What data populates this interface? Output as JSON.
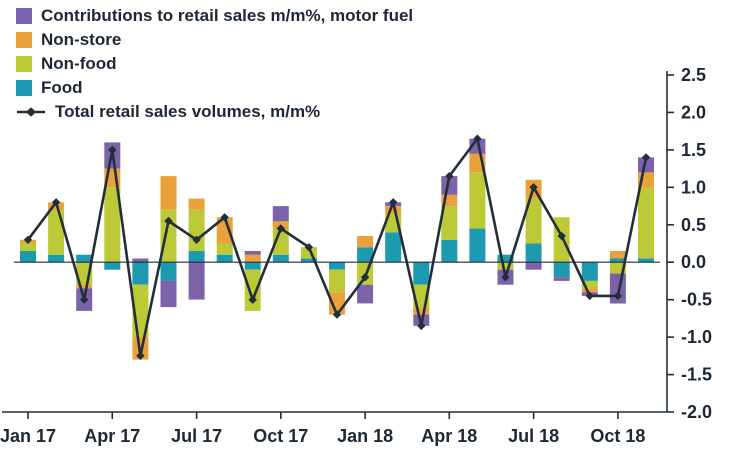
{
  "colors": {
    "motor_fuel": "#7C63A9",
    "non_store": "#E9A23B",
    "non_food": "#BDC937",
    "food": "#1E9AB0",
    "total_line": "#232E3B",
    "axis": "#222E3B",
    "text": "#1D2834",
    "background": "#FFFFFF"
  },
  "legend": {
    "items": [
      {
        "name": "motor-fuel",
        "type": "box",
        "color": "#7C63A9",
        "label": "Contributions to retail sales m/m%, motor fuel"
      },
      {
        "name": "non-store",
        "type": "box",
        "color": "#E9A23B",
        "label": "Non-store"
      },
      {
        "name": "non-food",
        "type": "box",
        "color": "#BDC937",
        "label": "Non-food"
      },
      {
        "name": "food",
        "type": "box",
        "color": "#1E9AB0",
        "label": "Food"
      },
      {
        "name": "total-line",
        "type": "line",
        "color": "#232E3B",
        "label": "Total retail sales volumes, m/m%"
      }
    ]
  },
  "chart_data": {
    "type": "bar",
    "subtype": "stacked-bars-with-line",
    "title": "",
    "xlabel": "",
    "ylabel": "",
    "ylim": [
      -2.0,
      2.5
    ],
    "grid": false,
    "legend_position": "top-left",
    "y_axis_side": "right",
    "y_ticks": [
      "2.5",
      "2.0",
      "1.5",
      "1.0",
      "0.5",
      "0.0",
      "-0.5",
      "-1.0",
      "-1.5",
      "-2.0"
    ],
    "categories": [
      "Jan 17",
      "Feb 17",
      "Mar 17",
      "Apr 17",
      "May 17",
      "Jun 17",
      "Jul 17",
      "Aug 17",
      "Sep 17",
      "Oct 17",
      "Nov 17",
      "Dec 17",
      "Jan 18",
      "Feb 18",
      "Mar 18",
      "Apr 18",
      "May 18",
      "Jun 18",
      "Jul 18",
      "Aug 18",
      "Sep 18",
      "Oct 18",
      "Nov 18"
    ],
    "x_tick_labels": [
      {
        "label": "Jan 17",
        "index": 0
      },
      {
        "label": "Apr 17",
        "index": 3
      },
      {
        "label": "Jul 17",
        "index": 6
      },
      {
        "label": "Oct 17",
        "index": 9
      },
      {
        "label": "Jan 18",
        "index": 12
      },
      {
        "label": "Apr 18",
        "index": 15
      },
      {
        "label": "Jul 18",
        "index": 18
      },
      {
        "label": "Oct 18",
        "index": 21
      }
    ],
    "series": [
      {
        "name": "Food",
        "color": "#1E9AB0",
        "values": [
          0.15,
          0.1,
          0.1,
          -0.1,
          -0.3,
          -0.25,
          0.15,
          0.1,
          -0.1,
          0.1,
          0.05,
          -0.1,
          0.2,
          0.4,
          -0.3,
          0.3,
          0.45,
          0.1,
          0.25,
          -0.2,
          -0.25,
          0.05,
          0.05
        ]
      },
      {
        "name": "Non-food",
        "color": "#BDC937",
        "values": [
          0.1,
          0.6,
          -0.3,
          1.0,
          -0.7,
          0.7,
          0.55,
          0.15,
          -0.55,
          0.35,
          0.15,
          -0.3,
          -0.3,
          0.25,
          -0.3,
          0.45,
          0.75,
          -0.1,
          0.6,
          0.6,
          -0.1,
          -0.15,
          0.95
        ]
      },
      {
        "name": "Non-store",
        "color": "#E9A23B",
        "values": [
          0.05,
          0.1,
          -0.05,
          0.25,
          -0.3,
          0.45,
          0.15,
          0.35,
          0.1,
          0.1,
          0.0,
          -0.3,
          0.15,
          0.1,
          -0.1,
          0.15,
          0.25,
          0.0,
          0.25,
          0.0,
          -0.05,
          0.1,
          0.2
        ]
      },
      {
        "name": "Motor fuel",
        "color": "#7C63A9",
        "values": [
          0.0,
          0.0,
          -0.3,
          0.35,
          0.05,
          -0.35,
          -0.5,
          0.0,
          0.05,
          0.2,
          0.0,
          0.0,
          -0.25,
          0.05,
          -0.15,
          0.25,
          0.2,
          -0.2,
          -0.1,
          -0.05,
          -0.05,
          -0.4,
          0.2
        ]
      }
    ],
    "line": {
      "name": "Total retail sales volumes, m/m%",
      "color": "#232E3B",
      "marker": "diamond",
      "values": [
        0.3,
        0.8,
        -0.5,
        1.5,
        -1.25,
        0.55,
        0.3,
        0.6,
        -0.5,
        0.45,
        0.2,
        -0.7,
        -0.2,
        0.8,
        -0.85,
        1.15,
        1.65,
        -0.2,
        1.0,
        0.35,
        -0.45,
        -0.45,
        1.4
      ]
    }
  }
}
